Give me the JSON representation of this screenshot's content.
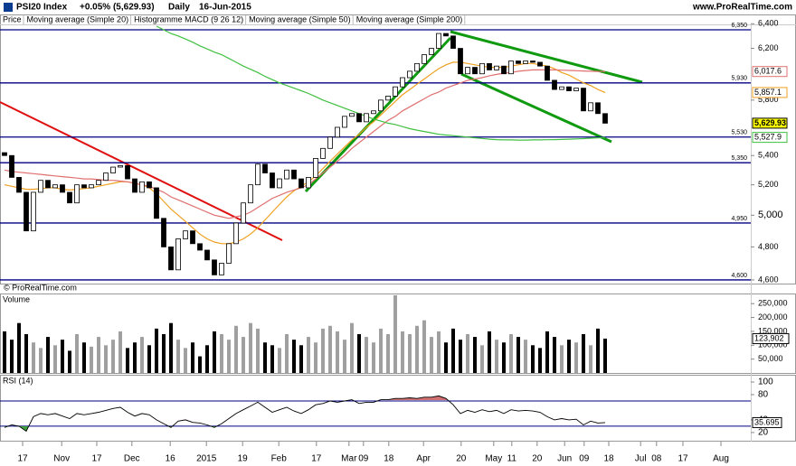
{
  "chart_data": [
    {
      "type": "candlestick",
      "title": "PSI20 Index",
      "subtitle": "+0.05% (5,629.93)",
      "period": "Daily",
      "date": "16-Jun-2015",
      "source": "www.ProRealTime.com",
      "price_label": "Price",
      "macd_label": "Histogramme MACD (9 26 12)",
      "copyright": "© ProRealTime.com",
      "log_scale": true,
      "xlim": [
        -0.625,
        103.125
      ],
      "ylim": [
        4573,
        6432
      ],
      "yticks": [
        {
          "value": 6400,
          "label": "6,400"
        },
        {
          "value": 6200,
          "label": "6,200"
        },
        {
          "value": 5800,
          "label": "5,800"
        },
        {
          "value": 5400,
          "label": "5,400"
        },
        {
          "value": 5200,
          "label": "5,200"
        },
        {
          "value": 5000,
          "label": "5,000"
        },
        {
          "value": 4800,
          "label": "4,800"
        },
        {
          "value": 4600,
          "label": "4,600"
        }
      ],
      "levels": [
        {
          "value": 6350,
          "label": "6,350"
        },
        {
          "value": 5930,
          "label": "5,930"
        },
        {
          "value": 5530,
          "label": "5,530"
        },
        {
          "value": 5350,
          "label": "5,350"
        },
        {
          "value": 4950,
          "label": "4,950"
        },
        {
          "value": 4600,
          "label": "4,600"
        }
      ],
      "level_color": "#000080",
      "up_color": "#ffffff",
      "down_color": "#000000",
      "open": [
        5420,
        5400,
        5250,
        5150,
        4900,
        5150,
        5230,
        5180,
        5200,
        5150,
        5080,
        5200,
        5180,
        5200,
        5230,
        5280,
        5320,
        5330,
        5240,
        5150,
        5220,
        5180,
        4980,
        4800,
        4660,
        4850,
        4900,
        4820,
        4780,
        4720,
        4630,
        4700,
        4820,
        4950,
        5080,
        5200,
        5340,
        5280,
        5180,
        5240,
        5300,
        5240,
        5180,
        5250,
        5380,
        5450,
        5530,
        5600,
        5680,
        5700,
        5640,
        5700,
        5720,
        5800,
        5830,
        5900,
        5970,
        6020,
        6080,
        6150,
        6200,
        6320,
        6300,
        6200,
        6000,
        6050,
        6000,
        6080,
        6030,
        6060,
        6000,
        6100,
        6080,
        6100,
        6090,
        6060,
        5950,
        5880,
        5900,
        5870,
        5890,
        5720,
        5780,
        5700
      ],
      "close": [
        5400,
        5250,
        5150,
        4900,
        5150,
        5230,
        5180,
        5200,
        5150,
        5080,
        5200,
        5180,
        5200,
        5230,
        5280,
        5320,
        5330,
        5240,
        5150,
        5220,
        5180,
        4980,
        4800,
        4660,
        4850,
        4900,
        4820,
        4780,
        4720,
        4630,
        4700,
        4820,
        4950,
        5080,
        5200,
        5340,
        5280,
        5180,
        5240,
        5300,
        5240,
        5180,
        5250,
        5380,
        5450,
        5530,
        5600,
        5680,
        5700,
        5640,
        5700,
        5720,
        5800,
        5830,
        5900,
        5970,
        6020,
        6080,
        6150,
        6200,
        6320,
        6300,
        6200,
        6000,
        6050,
        6000,
        6080,
        6030,
        6060,
        6000,
        6100,
        6080,
        6100,
        6090,
        6060,
        5950,
        5880,
        5900,
        5870,
        5890,
        5720,
        5780,
        5700,
        5629.93
      ],
      "last_label": "5,629.93",
      "last_color": "#ffff00",
      "series": [
        {
          "name": "Moving average (Simple 20)",
          "color": "#f0a020",
          "last_label": "5,857.1",
          "values": [
            5200,
            5190,
            5180,
            5170,
            5170,
            5175,
            5180,
            5180,
            5170,
            5165,
            5170,
            5175,
            5180,
            5190,
            5200,
            5210,
            5220,
            5220,
            5210,
            5200,
            5180,
            5140,
            5090,
            5040,
            5000,
            4960,
            4920,
            4880,
            4850,
            4830,
            4820,
            4820,
            4830,
            4850,
            4880,
            4920,
            4970,
            5020,
            5070,
            5120,
            5160,
            5190,
            5220,
            5260,
            5310,
            5360,
            5410,
            5460,
            5510,
            5550,
            5600,
            5640,
            5690,
            5740,
            5790,
            5840,
            5880,
            5920,
            5960,
            6000,
            6040,
            6070,
            6090,
            6090,
            6080,
            6070,
            6060,
            6050,
            6050,
            6050,
            6060,
            6070,
            6080,
            6080,
            6070,
            6060,
            6040,
            6010,
            5990,
            5960,
            5930,
            5910,
            5880,
            5857.1
          ]
        },
        {
          "name": "Moving average (Simple 50)",
          "color": "#e07070",
          "last_label": "6,017.6",
          "values": [
            5300,
            5290,
            5285,
            5280,
            5275,
            5270,
            5265,
            5260,
            5255,
            5250,
            5245,
            5240,
            5240,
            5235,
            5230,
            5230,
            5225,
            5220,
            5210,
            5200,
            5190,
            5170,
            5150,
            5120,
            5100,
            5080,
            5060,
            5040,
            5020,
            5000,
            4990,
            4980,
            4990,
            5000,
            5020,
            5050,
            5080,
            5110,
            5130,
            5150,
            5165,
            5180,
            5200,
            5240,
            5280,
            5320,
            5360,
            5400,
            5450,
            5490,
            5530,
            5570,
            5610,
            5650,
            5680,
            5720,
            5750,
            5780,
            5810,
            5840,
            5860,
            5890,
            5910,
            5930,
            5950,
            5960,
            5970,
            5985,
            5995,
            6005,
            6010,
            6020,
            6025,
            6030,
            6030,
            6030,
            6030,
            6028,
            6026,
            6024,
            6022,
            6020,
            6018,
            6017.6
          ]
        },
        {
          "name": "Moving average (Simple 200)",
          "color": "#40c040",
          "last_label": "5,527.9",
          "values": [
            null,
            null,
            null,
            null,
            null,
            null,
            null,
            null,
            null,
            null,
            null,
            null,
            null,
            null,
            null,
            null,
            null,
            null,
            null,
            null,
            null,
            6380,
            6350,
            6320,
            6300,
            6275,
            6250,
            6220,
            6195,
            6170,
            6150,
            6120,
            6090,
            6060,
            6035,
            6010,
            5980,
            5955,
            5930,
            5910,
            5890,
            5870,
            5850,
            5825,
            5800,
            5780,
            5760,
            5740,
            5720,
            5700,
            5680,
            5660,
            5645,
            5630,
            5620,
            5605,
            5590,
            5580,
            5570,
            5560,
            5550,
            5545,
            5540,
            5535,
            5530,
            5525,
            5520,
            5515,
            5512,
            5510,
            5510,
            5509,
            5509,
            5510,
            5510,
            5511,
            5512,
            5513,
            5515,
            5517,
            5519,
            5522,
            5525,
            5527.9
          ]
        }
      ]
    },
    {
      "type": "bar",
      "title": "Volume",
      "ylim": [
        0,
        280000
      ],
      "up_color": "#a0a0a0",
      "down_color": "#000000",
      "yticks": [
        {
          "value": 250000,
          "label": "250,000"
        },
        {
          "value": 200000,
          "label": "200,000"
        },
        {
          "value": 150000,
          "label": "150,000"
        },
        {
          "value": 100000,
          "label": "100,000"
        },
        {
          "value": 50000,
          "label": "50,000"
        }
      ],
      "values": [
        150000,
        120000,
        180000,
        140000,
        110000,
        90000,
        130000,
        100000,
        120000,
        80000,
        140000,
        110000,
        95000,
        130000,
        100000,
        120000,
        150000,
        90000,
        110000,
        130000,
        100000,
        160000,
        140000,
        180000,
        120000,
        90000,
        110000,
        60000,
        100000,
        150000,
        140000,
        120000,
        170000,
        130000,
        180000,
        160000,
        110000,
        100000,
        90000,
        140000,
        120000,
        100000,
        130000,
        110000,
        160000,
        170000,
        150000,
        120000,
        180000,
        140000,
        130000,
        110000,
        160000,
        140000,
        285000,
        150000,
        140000,
        170000,
        190000,
        130000,
        150000,
        110000,
        160000,
        120000,
        140000,
        130000,
        100000,
        150000,
        120000,
        110000,
        140000,
        130000,
        120000,
        100000,
        90000,
        150000,
        130000,
        100000,
        120000,
        110000,
        140000,
        100000,
        160000,
        123902
      ],
      "last_label": "123,902"
    },
    {
      "type": "line",
      "title": "RSI (14)",
      "ylim": [
        7,
        110
      ],
      "yticks": [
        100,
        80,
        40,
        20
      ],
      "levels": [
        70,
        30
      ],
      "color": "#000000",
      "high_fill": "#d07070",
      "low_fill": "#40a040",
      "last_label": "35.695",
      "values": [
        28,
        32,
        30,
        22,
        45,
        50,
        48,
        50,
        46,
        42,
        50,
        48,
        50,
        52,
        55,
        58,
        60,
        52,
        46,
        50,
        48,
        40,
        34,
        28,
        38,
        40,
        36,
        35,
        32,
        28,
        34,
        42,
        50,
        56,
        62,
        68,
        60,
        52,
        56,
        60,
        54,
        50,
        56,
        64,
        66,
        70,
        68,
        70,
        72,
        66,
        68,
        68,
        72,
        72,
        74,
        74,
        75,
        74,
        76,
        76,
        78,
        74,
        64,
        50,
        55,
        52,
        56,
        53,
        55,
        50,
        56,
        54,
        55,
        54,
        52,
        45,
        40,
        42,
        40,
        41,
        32,
        38,
        35,
        35.695
      ],
      "xticks": [
        {
          "value": 2.5,
          "label": "17"
        },
        {
          "value": 7.9,
          "label": "Nov"
        },
        {
          "value": 12.75,
          "label": "17"
        },
        {
          "value": 17.6,
          "label": "Dec"
        },
        {
          "value": 22.9,
          "label": "16"
        },
        {
          "value": 27.9,
          "label": "2015"
        },
        {
          "value": 32.9,
          "label": "19"
        },
        {
          "value": 37.9,
          "label": "Feb"
        },
        {
          "value": 43.1,
          "label": "17"
        },
        {
          "value": 47.6,
          "label": "Mar"
        },
        {
          "value": 49.6,
          "label": "09"
        },
        {
          "value": 53.1,
          "label": "18"
        },
        {
          "value": 57.9,
          "label": "Apr"
        },
        {
          "value": 63.1,
          "label": "20"
        },
        {
          "value": 67.6,
          "label": "May"
        },
        {
          "value": 70.1,
          "label": "11"
        },
        {
          "value": 73.6,
          "label": "20"
        },
        {
          "value": 77.4,
          "label": "Jun"
        },
        {
          "value": 80.1,
          "label": "09"
        },
        {
          "value": 83.5,
          "label": "18"
        },
        {
          "value": 87.9,
          "label": "Jul"
        },
        {
          "value": 90.1,
          "label": "08"
        },
        {
          "value": 93.75,
          "label": "17"
        },
        {
          "value": 99,
          "label": "Aug"
        }
      ]
    }
  ]
}
